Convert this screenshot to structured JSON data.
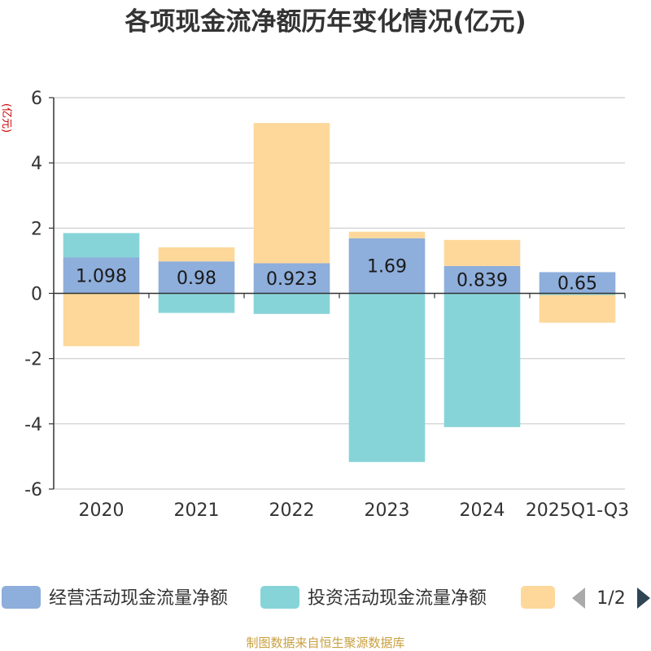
{
  "chart_data": {
    "type": "bar",
    "stacked": true,
    "title": "各项现金流净额历年变化情况(亿元)",
    "ylabel": "(亿元)",
    "xlabel": "",
    "categories": [
      "2020",
      "2021",
      "2022",
      "2023",
      "2024",
      "2025Q1-Q3"
    ],
    "ylim": [
      -6,
      6
    ],
    "yticks": [
      -6,
      -4,
      -2,
      0,
      2,
      4,
      6
    ],
    "series": [
      {
        "name": "经营活动现金流量净额",
        "color": "#8eaedb",
        "values": [
          1.098,
          0.98,
          0.923,
          1.69,
          0.839,
          0.65
        ],
        "labels": [
          "1.098",
          "0.98",
          "0.923",
          "1.69",
          "0.839",
          "0.65"
        ]
      },
      {
        "name": "投资活动现金流量净额",
        "color": "#87d4d8",
        "values": [
          0.75,
          -0.6,
          -0.63,
          -5.17,
          -4.1,
          -0.05
        ]
      },
      {
        "name": "",
        "color": "#fdd89a",
        "values": [
          -1.62,
          0.43,
          4.3,
          0.2,
          0.8,
          -0.85
        ]
      }
    ],
    "legend": {
      "position": "bottom",
      "page": "1/2"
    },
    "source": "制图数据来自恒生聚源数据库"
  }
}
